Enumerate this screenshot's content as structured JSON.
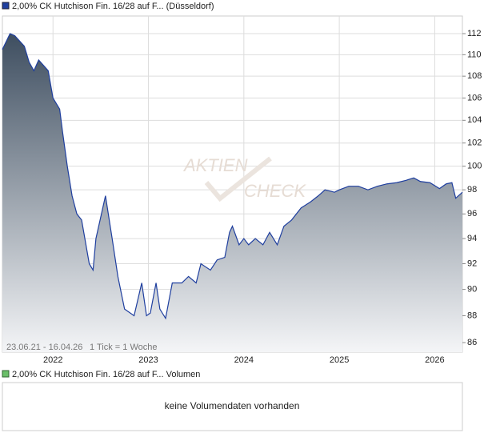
{
  "chart_data": {
    "type": "area",
    "log_y": true,
    "grid": true,
    "series": [
      {
        "name": "2,00% CK Hutchison Fin. 16/28 auf F... (Düsseldorf)",
        "color": "#1f3f9f",
        "x": [
          2021.47,
          2021.55,
          2021.6,
          2021.7,
          2021.75,
          2021.8,
          2021.85,
          2021.9,
          2021.95,
          2022.0,
          2022.07,
          2022.1,
          2022.15,
          2022.2,
          2022.25,
          2022.3,
          2022.38,
          2022.42,
          2022.45,
          2022.55,
          2022.62,
          2022.68,
          2022.75,
          2022.85,
          2022.93,
          2022.98,
          2023.02,
          2023.08,
          2023.12,
          2023.18,
          2023.25,
          2023.35,
          2023.42,
          2023.5,
          2023.55,
          2023.65,
          2023.72,
          2023.8,
          2023.85,
          2023.88,
          2023.95,
          2024.0,
          2024.05,
          2024.12,
          2024.2,
          2024.27,
          2024.35,
          2024.42,
          2024.5,
          2024.6,
          2024.7,
          2024.78,
          2024.85,
          2024.95,
          2025.0,
          2025.1,
          2025.2,
          2025.3,
          2025.4,
          2025.5,
          2025.6,
          2025.7,
          2025.78,
          2025.85,
          2025.95,
          2026.05,
          2026.12,
          2026.18,
          2026.22,
          2026.29
        ],
        "values": [
          110.5,
          112,
          111.8,
          110.8,
          109.3,
          108.5,
          109.5,
          109,
          108.5,
          106,
          105,
          103,
          100,
          97.5,
          96,
          95.5,
          92,
          91.5,
          94,
          97.5,
          94,
          91,
          88.5,
          88,
          90.5,
          88,
          88.2,
          90.5,
          88.5,
          87.8,
          90.5,
          90.5,
          91,
          90.5,
          92,
          91.5,
          92.3,
          92.5,
          94.5,
          95,
          93.5,
          94,
          93.5,
          94,
          93.5,
          94.5,
          93.5,
          95,
          95.5,
          96.5,
          97,
          97.5,
          98,
          97.8,
          98,
          98.3,
          98.3,
          98,
          98.3,
          98.5,
          98.6,
          98.8,
          99,
          98.7,
          98.6,
          98.1,
          98.5,
          98.6,
          97.3,
          97.8
        ]
      }
    ],
    "xlim": [
      2021.47,
      2026.29
    ],
    "xticks": [
      2022,
      2023,
      2024,
      2025,
      2026
    ],
    "ylim": [
      85.3,
      113.7
    ],
    "yticks": [
      86,
      88,
      90,
      92,
      94,
      96,
      98,
      100,
      102,
      104,
      106,
      108,
      110,
      112
    ],
    "range_note": "23.06.21 - 16.04.26",
    "tick_note": "1 Tick = 1 Woche",
    "watermark_top": "AKTIEN",
    "watermark_bottom": "CHECK"
  },
  "volume_panel": {
    "name": "2,00% CK Hutchison Fin. 16/28 auf F... Volumen",
    "color": "#6abf69",
    "message": "keine Volumendaten vorhanden"
  }
}
